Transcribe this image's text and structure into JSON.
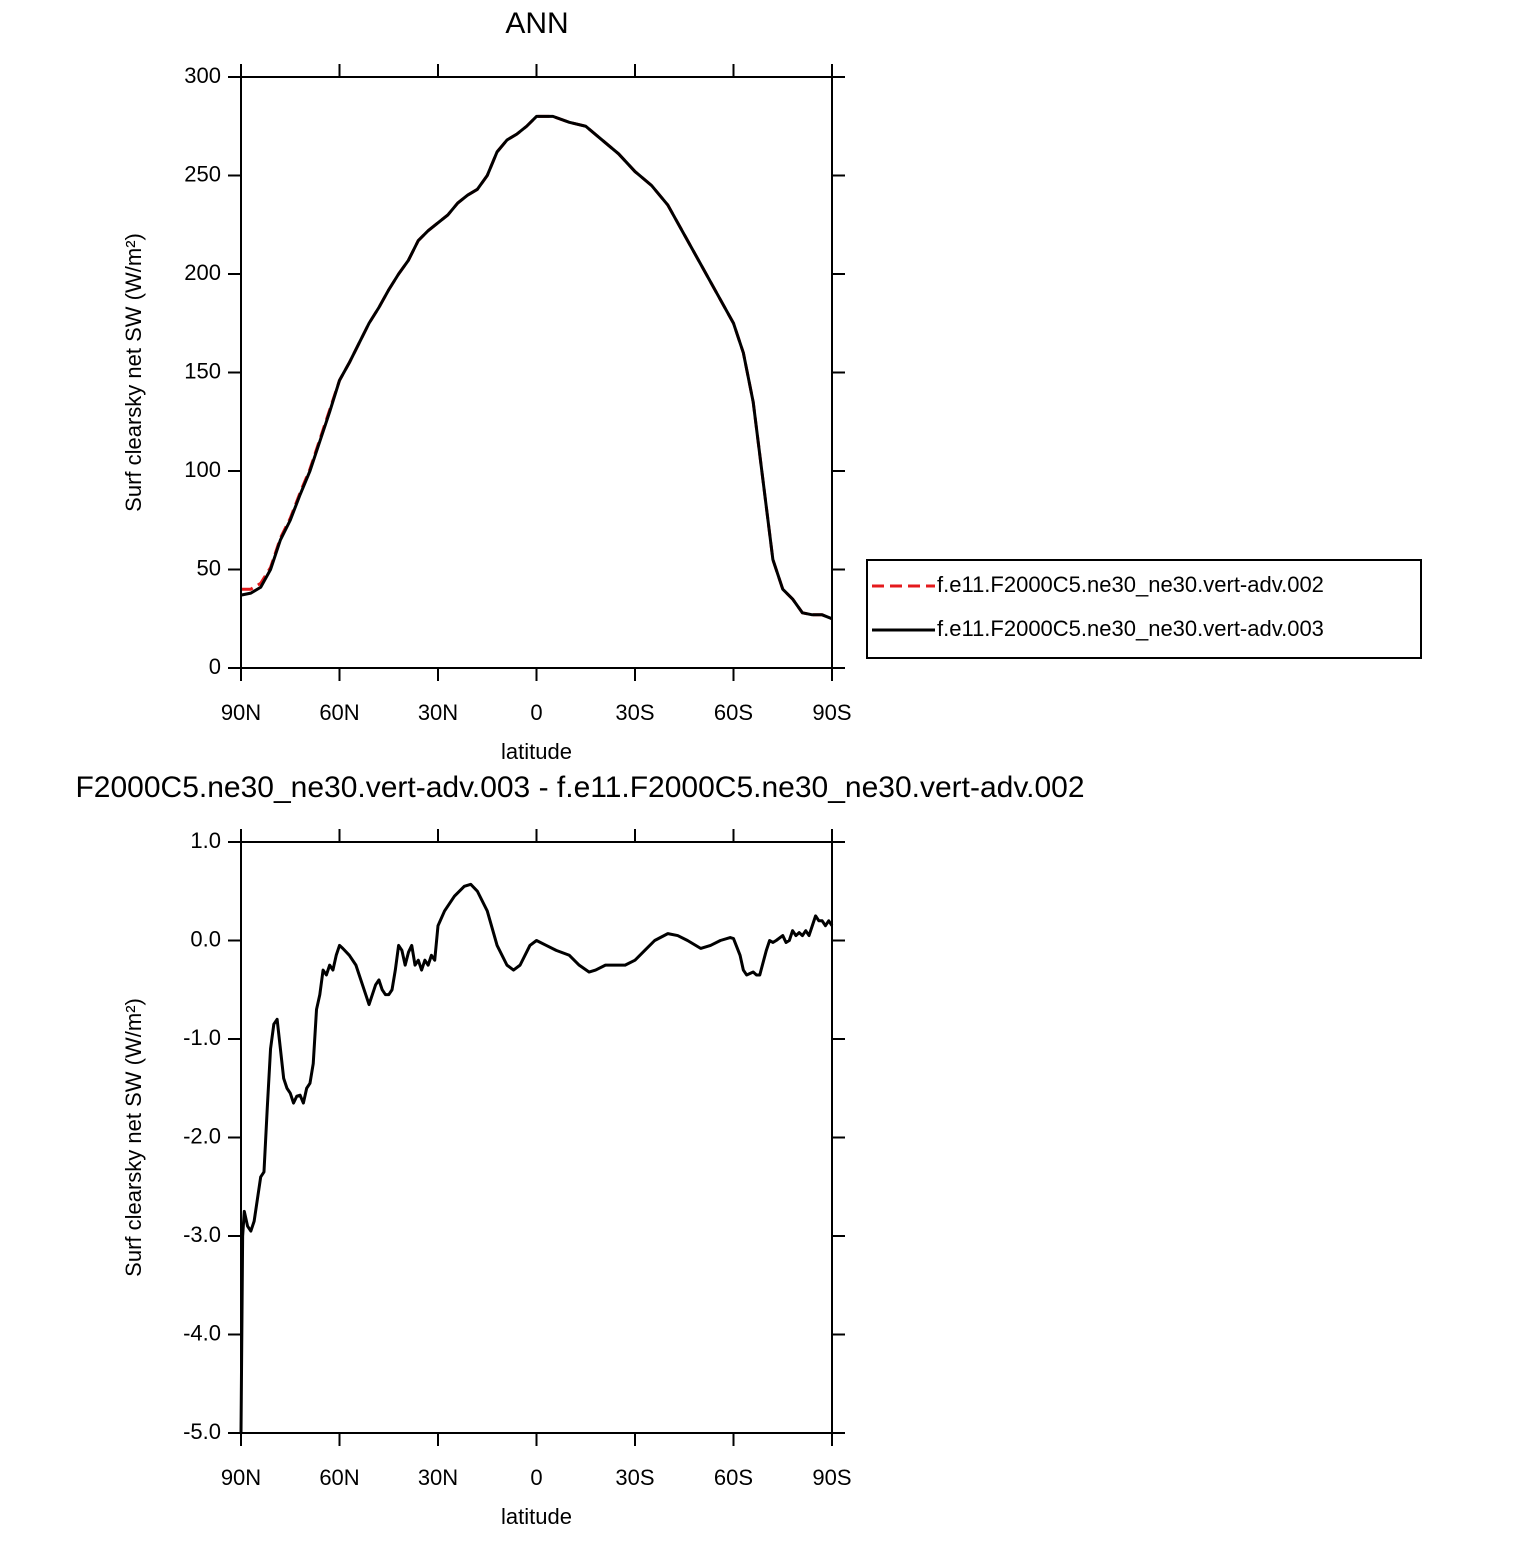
{
  "chart_data": [
    {
      "type": "line",
      "title": "ANN",
      "xlabel": "latitude",
      "ylabel": "Surf clearsky net SW (W/m²)",
      "x": [
        90,
        87,
        84,
        81,
        78,
        75,
        72,
        69,
        66,
        63,
        60,
        57,
        54,
        51,
        48,
        45,
        42,
        39,
        36,
        33,
        30,
        27,
        24,
        21,
        18,
        15,
        12,
        9,
        6,
        3,
        0,
        -5,
        -10,
        -15,
        -20,
        -25,
        -30,
        -35,
        -40,
        -45,
        -50,
        -55,
        -60,
        -63,
        -66,
        -69,
        -72,
        -75,
        -78,
        -81,
        -84,
        -87,
        -90
      ],
      "series": [
        {
          "name": "f.e11.F2000C5.ne30_ne30.vert-adv.002",
          "color": "#e41a1c",
          "dashed": true,
          "values": [
            40,
            40,
            43,
            51,
            66,
            76,
            89,
            101,
            116,
            131,
            146,
            155,
            165,
            175,
            183,
            192,
            200,
            207,
            217,
            222,
            226,
            230,
            236,
            240,
            243,
            250,
            262,
            268,
            271,
            275,
            280,
            280,
            277,
            275,
            268,
            261,
            252,
            245,
            235,
            220,
            205,
            190,
            175,
            160,
            135,
            95,
            55,
            40,
            35,
            28,
            27,
            27,
            25
          ]
        },
        {
          "name": "f.e11.F2000C5.ne30_ne30.vert-adv.003",
          "color": "#000000",
          "dashed": false,
          "values": [
            37,
            38,
            41,
            50,
            65,
            75,
            88,
            100,
            115,
            130,
            146,
            155,
            165,
            175,
            183,
            192,
            200,
            207,
            217,
            222,
            226,
            230,
            236,
            240,
            243,
            250,
            262,
            268,
            271,
            275,
            280,
            280,
            277,
            275,
            268,
            261,
            252,
            245,
            235,
            220,
            205,
            190,
            175,
            160,
            135,
            95,
            55,
            40,
            35,
            28,
            27,
            27,
            25
          ]
        }
      ],
      "xlim": [
        90,
        -90
      ],
      "xticks": [
        {
          "value": 90,
          "label": "90N"
        },
        {
          "value": 60,
          "label": "60N"
        },
        {
          "value": 30,
          "label": "30N"
        },
        0,
        {
          "value": -30,
          "label": "30S"
        },
        {
          "value": -60,
          "label": "60S"
        },
        {
          "value": -90,
          "label": "90S"
        }
      ],
      "ylim": [
        0,
        300
      ],
      "yticks": [
        0,
        50,
        100,
        150,
        200,
        250,
        300
      ],
      "grid": false,
      "legend": "right"
    },
    {
      "type": "line",
      "title": "F2000C5.ne30_ne30.vert-adv.003 - f.e11.F2000C5.ne30_ne30.vert-adv.002",
      "xlabel": "latitude",
      "ylabel": "Surf clearsky net SW (W/m²)",
      "x": [
        90,
        89.5,
        89,
        88,
        87,
        86,
        84,
        83,
        82,
        81,
        80,
        79,
        78,
        77,
        76,
        75,
        74,
        73,
        72,
        71,
        70,
        69,
        68,
        67,
        66,
        65,
        64,
        63,
        62,
        61,
        60,
        59,
        57,
        55,
        54,
        52,
        51,
        50,
        49,
        48,
        47,
        46,
        45,
        44,
        43,
        42,
        41,
        40,
        39,
        38,
        37,
        36,
        35,
        34,
        33,
        32,
        31,
        30,
        28,
        25,
        22,
        20,
        18,
        15,
        12,
        9,
        7,
        5,
        2,
        0,
        -3,
        -6,
        -10,
        -13,
        -16,
        -18,
        -21,
        -24,
        -27,
        -30,
        -33,
        -36,
        -40,
        -43,
        -46,
        -50,
        -53,
        -56,
        -59,
        -60,
        -62,
        -63,
        -64,
        -66,
        -67,
        -68,
        -70,
        -71,
        -72,
        -73,
        -75,
        -76,
        -77,
        -78,
        -79,
        -80,
        -81,
        -82,
        -83,
        -84,
        -85,
        -86,
        -87,
        -88,
        -89,
        -90
      ],
      "series": [
        {
          "color": "#000000",
          "dashed": false,
          "values": [
            -5.0,
            -3.0,
            -2.75,
            -2.9,
            -2.95,
            -2.85,
            -2.4,
            -2.35,
            -1.7,
            -1.1,
            -0.85,
            -0.8,
            -1.1,
            -1.4,
            -1.5,
            -1.55,
            -1.65,
            -1.58,
            -1.57,
            -1.65,
            -1.5,
            -1.45,
            -1.25,
            -0.7,
            -0.55,
            -0.3,
            -0.35,
            -0.25,
            -0.3,
            -0.15,
            -0.05,
            -0.08,
            -0.15,
            -0.25,
            -0.35,
            -0.55,
            -0.65,
            -0.55,
            -0.45,
            -0.4,
            -0.5,
            -0.55,
            -0.55,
            -0.5,
            -0.3,
            -0.05,
            -0.1,
            -0.25,
            -0.12,
            -0.05,
            -0.25,
            -0.2,
            -0.3,
            -0.2,
            -0.25,
            -0.15,
            -0.2,
            0.15,
            0.3,
            0.45,
            0.55,
            0.57,
            0.5,
            0.3,
            -0.05,
            -0.25,
            -0.3,
            -0.25,
            -0.05,
            0,
            -0.05,
            -0.1,
            -0.15,
            -0.25,
            -0.32,
            -0.3,
            -0.25,
            -0.25,
            -0.25,
            -0.2,
            -0.1,
            0,
            0.07,
            0.05,
            0,
            -0.08,
            -0.05,
            0,
            0.03,
            0.02,
            -0.15,
            -0.3,
            -0.35,
            -0.32,
            -0.35,
            -0.35,
            -0.1,
            0,
            -0.02,
            0,
            0.05,
            -0.02,
            0,
            0.1,
            0.05,
            0.08,
            0.05,
            0.1,
            0.05,
            0.15,
            0.25,
            0.2,
            0.2,
            0.15,
            0.2,
            0.15
          ]
        }
      ],
      "xlim": [
        90,
        -90
      ],
      "xticks": [
        {
          "value": 90,
          "label": "90N"
        },
        {
          "value": 60,
          "label": "60N"
        },
        {
          "value": 30,
          "label": "30N"
        },
        0,
        {
          "value": -30,
          "label": "30S"
        },
        {
          "value": -60,
          "label": "60S"
        },
        {
          "value": -90,
          "label": "90S"
        }
      ],
      "ylim": [
        -5,
        1
      ],
      "yticks": [
        {
          "value": -5,
          "label": "-5.0"
        },
        {
          "value": -4,
          "label": "-4.0"
        },
        {
          "value": -3,
          "label": "-3.0"
        },
        {
          "value": -2,
          "label": "-2.0"
        },
        {
          "value": -1,
          "label": "-1.0"
        },
        {
          "value": 0,
          "label": "0.0"
        },
        {
          "value": 1,
          "label": "1.0"
        }
      ],
      "grid": false
    }
  ]
}
